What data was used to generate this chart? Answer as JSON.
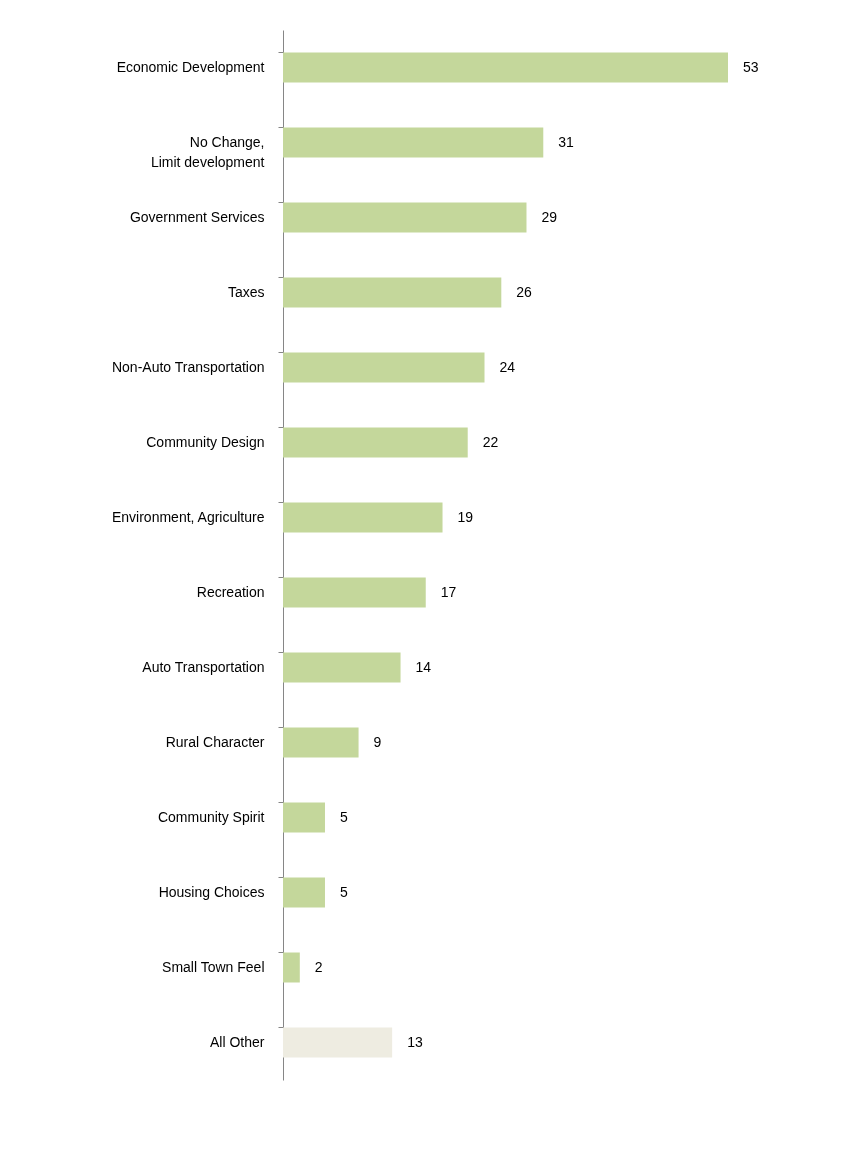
{
  "chart_data": {
    "type": "bar",
    "orientation": "horizontal",
    "data_labels": true,
    "categories": [
      "Economic Development",
      "No Change,\nLimit development",
      "Government Services",
      "Taxes",
      "Non-Auto Transportation",
      "Community Design",
      "Environment, Agriculture",
      "Recreation",
      "Auto Transportation",
      "Rural Character",
      "Community Spirit",
      "Housing Choices",
      "Small Town Feel",
      "All Other"
    ],
    "values": [
      53,
      31,
      29,
      26,
      24,
      22,
      19,
      17,
      14,
      9,
      5,
      5,
      2,
      13
    ],
    "colors": [
      "#c4d79b",
      "#c4d79b",
      "#c4d79b",
      "#c4d79b",
      "#c4d79b",
      "#c4d79b",
      "#c4d79b",
      "#c4d79b",
      "#c4d79b",
      "#c4d79b",
      "#c4d79b",
      "#c4d79b",
      "#c4d79b",
      "#eeece1"
    ]
  }
}
